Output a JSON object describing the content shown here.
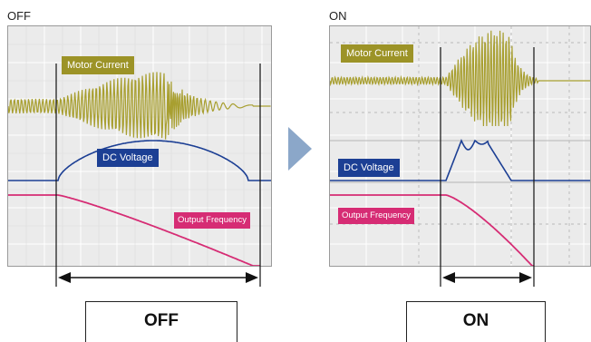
{
  "left": {
    "heading": "OFF",
    "labels": {
      "motor_current": "Motor Current",
      "dc_voltage": "DC Voltage",
      "output_frequency": "Output Frequency"
    },
    "mode_label": "OFF"
  },
  "right": {
    "heading": "ON",
    "labels": {
      "motor_current": "Motor Current",
      "dc_voltage": "DC Voltage",
      "output_frequency": "Output Frequency"
    },
    "mode_label": "ON"
  },
  "colors": {
    "motor_current": "#9c9327",
    "dc_voltage": "#1c3f94",
    "output_frequency": "#d62c74",
    "arrow": "#8ba7c9"
  }
}
